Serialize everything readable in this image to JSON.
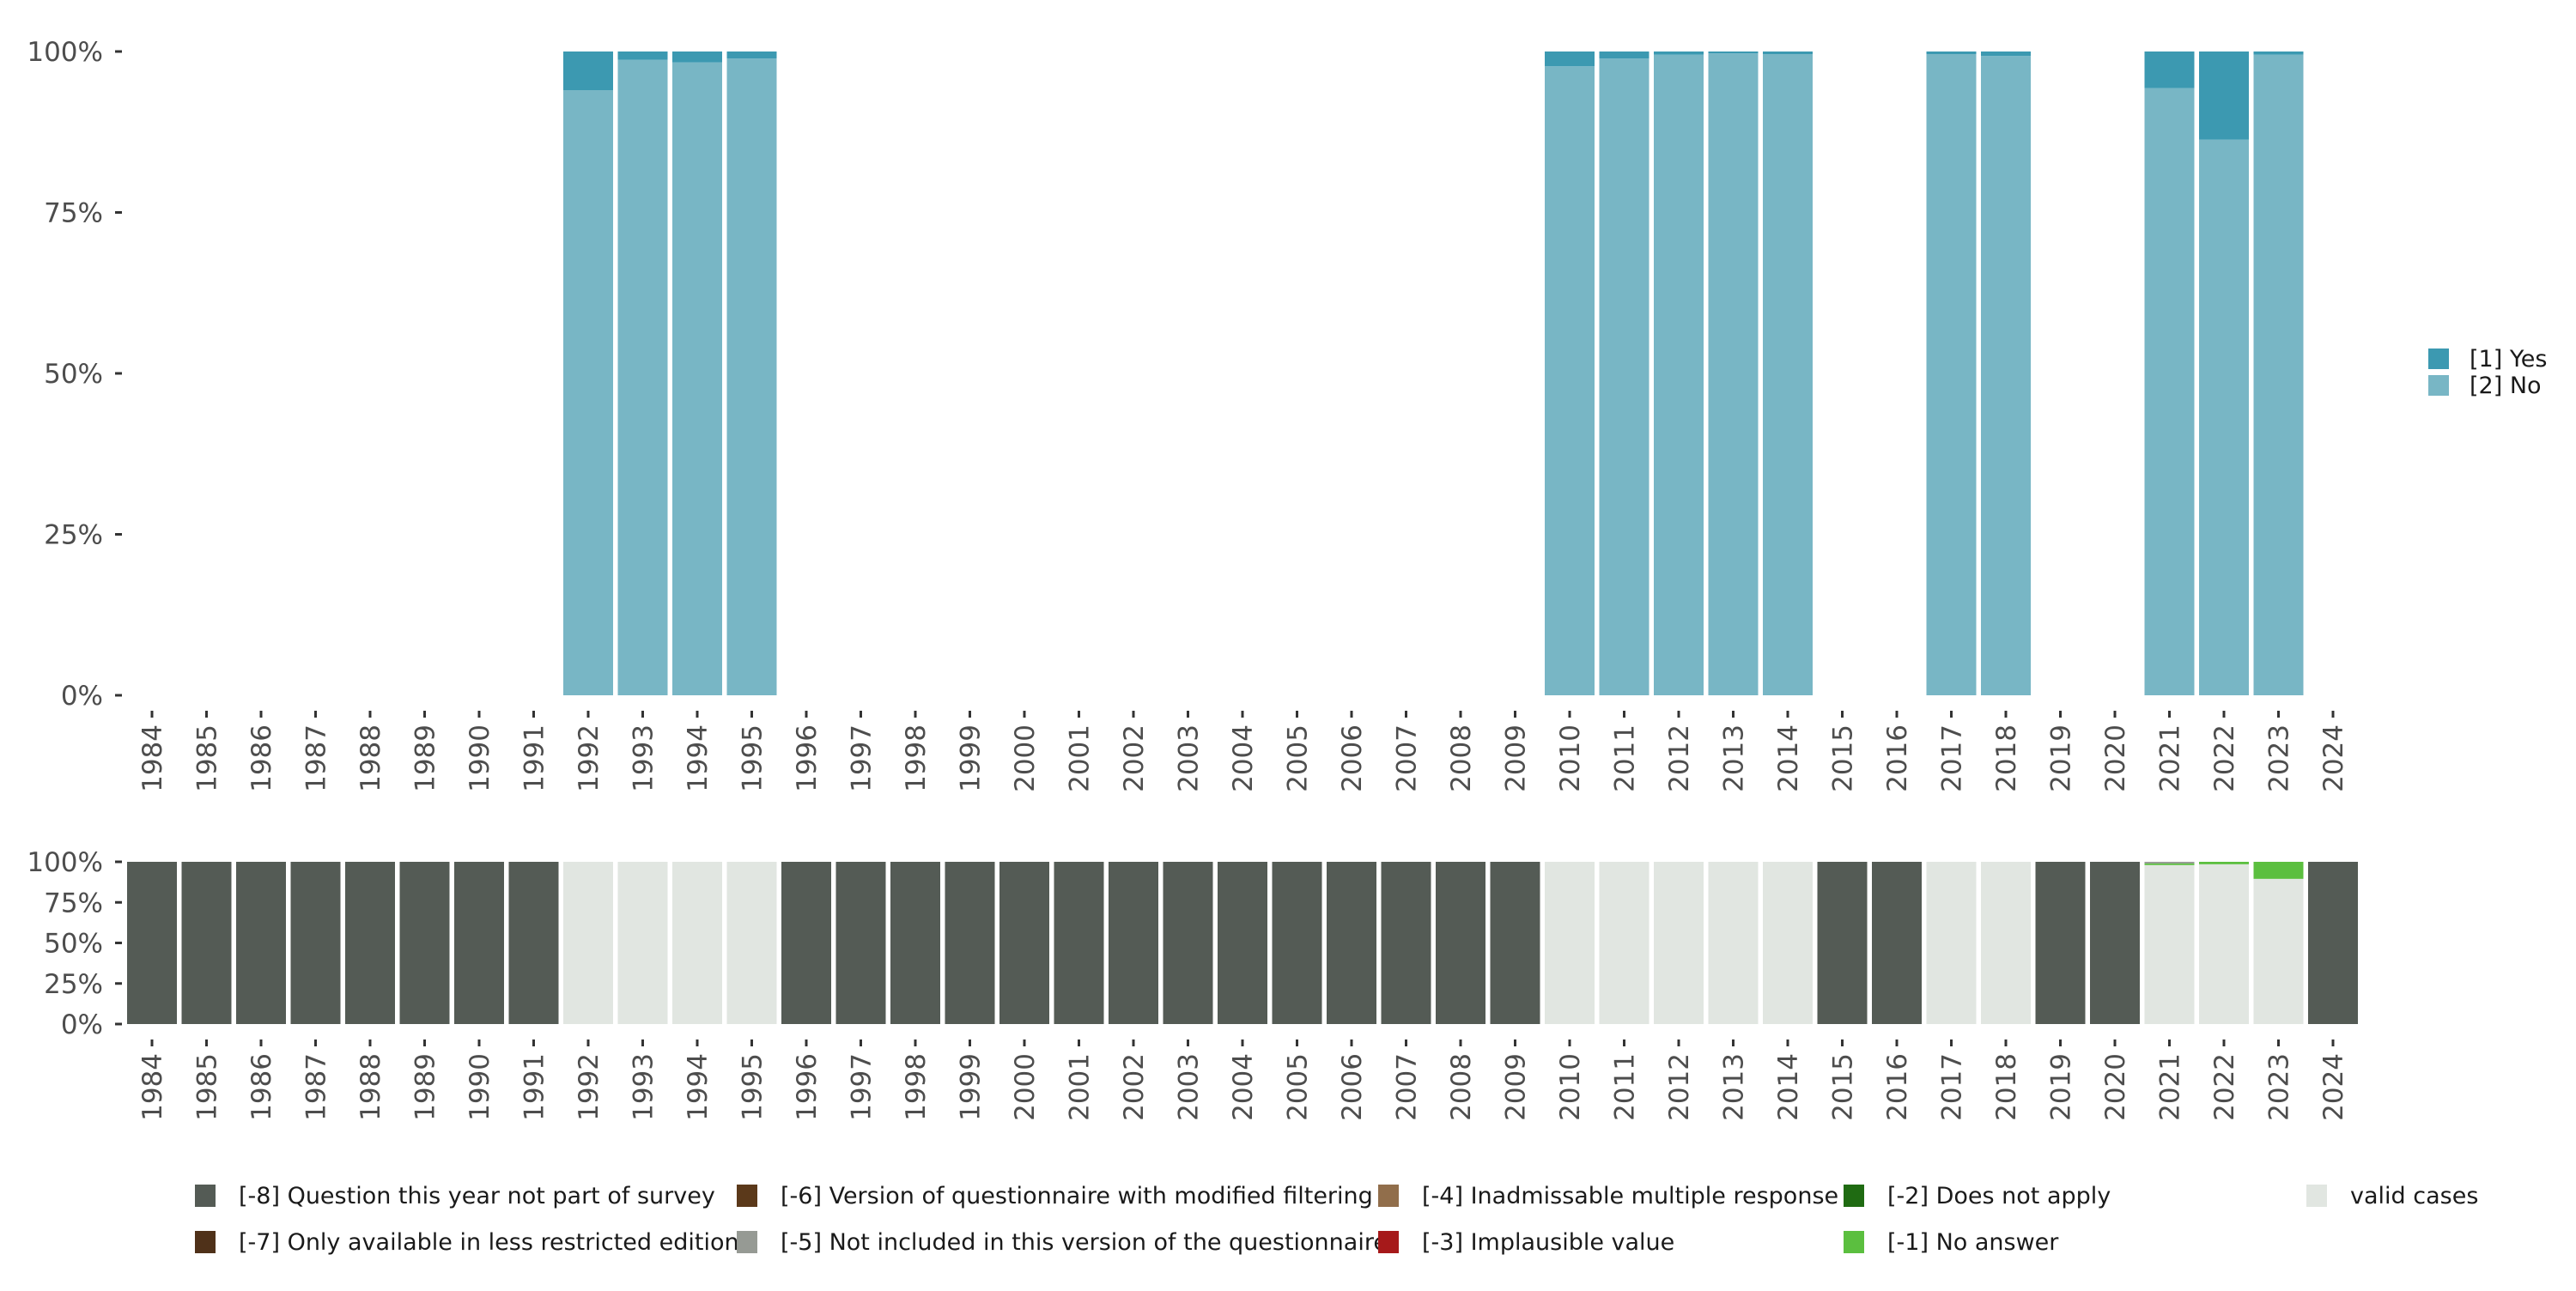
{
  "chart_data": [
    {
      "type": "bar",
      "stacked": true,
      "title": "",
      "xlabel": "",
      "ylabel": "",
      "ylim": [
        0,
        100
      ],
      "y_ticks": [
        "0%",
        "25%",
        "50%",
        "75%",
        "100%"
      ],
      "categories": [
        "1984",
        "1985",
        "1986",
        "1987",
        "1988",
        "1989",
        "1990",
        "1991",
        "1992",
        "1993",
        "1994",
        "1995",
        "1996",
        "1997",
        "1998",
        "1999",
        "2000",
        "2001",
        "2002",
        "2003",
        "2004",
        "2005",
        "2006",
        "2007",
        "2008",
        "2009",
        "2010",
        "2011",
        "2012",
        "2013",
        "2014",
        "2015",
        "2016",
        "2017",
        "2018",
        "2019",
        "2020",
        "2021",
        "2022",
        "2023",
        "2024"
      ],
      "legend_position": "right",
      "series": [
        {
          "name": "[2] No",
          "color": "#78b6c5",
          "values": [
            null,
            null,
            null,
            null,
            null,
            null,
            null,
            null,
            94.0,
            98.7,
            98.3,
            98.9,
            null,
            null,
            null,
            null,
            null,
            null,
            null,
            null,
            null,
            null,
            null,
            null,
            null,
            null,
            97.7,
            98.9,
            99.5,
            99.7,
            99.6,
            null,
            null,
            99.6,
            99.3,
            null,
            null,
            94.3,
            86.3,
            99.5,
            null
          ]
        },
        {
          "name": "[1] Yes",
          "color": "#3c99b1",
          "values": [
            null,
            null,
            null,
            null,
            null,
            null,
            null,
            null,
            6.0,
            1.3,
            1.7,
            1.1,
            null,
            null,
            null,
            null,
            null,
            null,
            null,
            null,
            null,
            null,
            null,
            null,
            null,
            null,
            2.3,
            1.1,
            0.5,
            0.3,
            0.4,
            null,
            null,
            0.4,
            0.7,
            null,
            null,
            5.7,
            13.7,
            0.5,
            null
          ]
        }
      ]
    },
    {
      "type": "bar",
      "stacked": true,
      "ylim": [
        0,
        100
      ],
      "y_ticks": [
        "0%",
        "25%",
        "50%",
        "75%",
        "100%"
      ],
      "categories": [
        "1984",
        "1985",
        "1986",
        "1987",
        "1988",
        "1989",
        "1990",
        "1991",
        "1992",
        "1993",
        "1994",
        "1995",
        "1996",
        "1997",
        "1998",
        "1999",
        "2000",
        "2001",
        "2002",
        "2003",
        "2004",
        "2005",
        "2006",
        "2007",
        "2008",
        "2009",
        "2010",
        "2011",
        "2012",
        "2013",
        "2014",
        "2015",
        "2016",
        "2017",
        "2018",
        "2019",
        "2020",
        "2021",
        "2022",
        "2023",
        "2024"
      ],
      "legend_position": "bottom",
      "legend": [
        {
          "name": "[-8] Question this year not part of survey",
          "color": "#545b55"
        },
        {
          "name": "[-7] Only available in less restricted edition",
          "color": "#4f3119"
        },
        {
          "name": "[-6] Version of questionnaire with modified filtering",
          "color": "#5b391a"
        },
        {
          "name": "[-5] Not included in this version of the questionnaire",
          "color": "#969a94"
        },
        {
          "name": "[-4] Inadmissable multiple response",
          "color": "#916e4b"
        },
        {
          "name": "[-3] Implausible value",
          "color": "#a6191a"
        },
        {
          "name": "[-2] Does not apply",
          "color": "#1f6b12"
        },
        {
          "name": "[-1] No answer",
          "color": "#5bbf3f"
        },
        {
          "name": "valid cases",
          "color": "#e1e6e1"
        }
      ],
      "series": [
        {
          "name": "valid cases",
          "values": [
            0,
            0,
            0,
            0,
            0,
            0,
            0,
            0,
            100,
            100,
            100,
            100,
            0,
            0,
            0,
            0,
            0,
            0,
            0,
            0,
            0,
            0,
            0,
            0,
            0,
            0,
            100,
            100,
            100,
            100,
            100,
            0,
            0,
            100,
            100,
            0,
            0,
            98,
            98.5,
            89.5,
            0
          ]
        },
        {
          "name": "[-1] No answer",
          "values": [
            0,
            0,
            0,
            0,
            0,
            0,
            0,
            0,
            0,
            0,
            0,
            0,
            0,
            0,
            0,
            0,
            0,
            0,
            0,
            0,
            0,
            0,
            0,
            0,
            0,
            0,
            0,
            0,
            0,
            0,
            0,
            0,
            0,
            0,
            0,
            0,
            0,
            1,
            1.5,
            10.5,
            0
          ]
        },
        {
          "name": "[-5] Not included in this version of the questionnaire",
          "values": [
            0,
            0,
            0,
            0,
            0,
            0,
            0,
            0,
            0,
            0,
            0,
            0,
            0,
            0,
            0,
            0,
            0,
            0,
            0,
            0,
            0,
            0,
            0,
            0,
            0,
            0,
            0,
            0,
            0,
            0,
            0,
            0,
            0,
            0,
            0,
            0,
            0,
            1,
            0,
            0,
            0
          ]
        },
        {
          "name": "[-8] Question this year not part of survey",
          "values": [
            100,
            100,
            100,
            100,
            100,
            100,
            100,
            100,
            0,
            0,
            0,
            0,
            100,
            100,
            100,
            100,
            100,
            100,
            100,
            100,
            100,
            100,
            100,
            100,
            100,
            100,
            0,
            0,
            0,
            0,
            0,
            100,
            100,
            0,
            0,
            100,
            100,
            0,
            0,
            0,
            100
          ]
        }
      ]
    }
  ]
}
